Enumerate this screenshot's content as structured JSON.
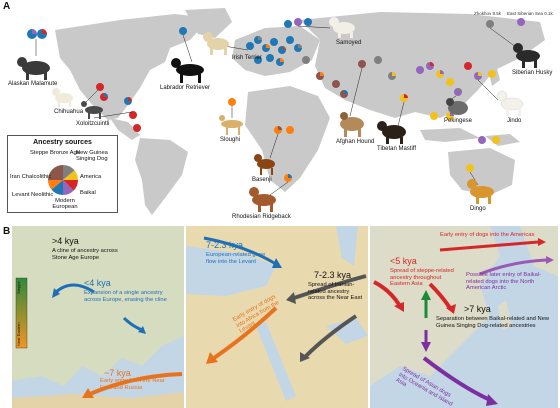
{
  "panel_a": {
    "letter": "A",
    "breeds": {
      "alaskan_malamute": "Alaskan Malamute",
      "chihuahua": "Chihuahua",
      "xoloitzcuintli": "Xoloitzcuintli",
      "labrador_retriever": "Labrador Retriever",
      "irish_terrier": "Irish Terrier",
      "samoyed": "Samoyed",
      "siberian_husky": "Siberian Husky",
      "jindo": "Jindo",
      "pekingese": "Pekingese",
      "tibetan_mastiff": "Tibetan Mastiff",
      "afghan_hound": "Afghan Hound",
      "sloughi": "Sloughi",
      "basenji": "Basenji",
      "rhodesian_ridgeback": "Rhodesian Ridgeback",
      "dingo": "Dingo"
    },
    "site_labels": {
      "zhokhov": "Zhokhov 9.5k",
      "ust_kyakhta": "East Siberian Sea 0.1k"
    },
    "legend": {
      "title": "Ancestry sources",
      "labels": [
        "Steppe Bronze Age",
        "New Guinea Singing Dog",
        "Iran Chalcolithic",
        "America",
        "Levant Neolithic",
        "Baikal",
        "Modern European"
      ]
    },
    "colors": {
      "steppe": "#7f7f7f",
      "ngsd": "#f2c21b",
      "iran": "#8c564b",
      "america": "#d62728",
      "levant": "#ff7f0e",
      "baikal": "#9467bd",
      "europe": "#1f77b4",
      "land": "#c9c9c9",
      "ocean": "#ffffff"
    }
  },
  "panel_b": {
    "letter": "B",
    "europe": {
      "time1": ">4 kya",
      "text1": "A cline of ancestry across Stone Age Europe",
      "scale_top": "Steppe",
      "scale_bottom": "Near Eastern",
      "time2": "<4 kya",
      "text2": "Expansion of a single ancestry across Europe, erasing the cline",
      "time3": "~7 kya",
      "text3": "Early entry from the Near East and Russia"
    },
    "near_east": {
      "time1": "7-2.3 kya",
      "text1": "European-related gene flow into the Levant",
      "time2": "7-2.3 kya",
      "text2": "Spread of Iranian-related ancestry across the Near East",
      "text3": "Early entry of dogs into Africa from the Levant"
    },
    "asia": {
      "time1": "<5 kya",
      "text1": "Spread of steppe-related ancestry throughout Eastern Asia",
      "text2": "Early entry of dogs into the Americas",
      "text3": "Possible later entry of Baikal-related dogs into the North American Arctic",
      "time2": ">7 kya",
      "text4": "Separation between Baikal-related and New Guinea Singing Dog-related ancestries",
      "text5": "Spread of Asian dogs into Oceania and Island Asia"
    }
  }
}
